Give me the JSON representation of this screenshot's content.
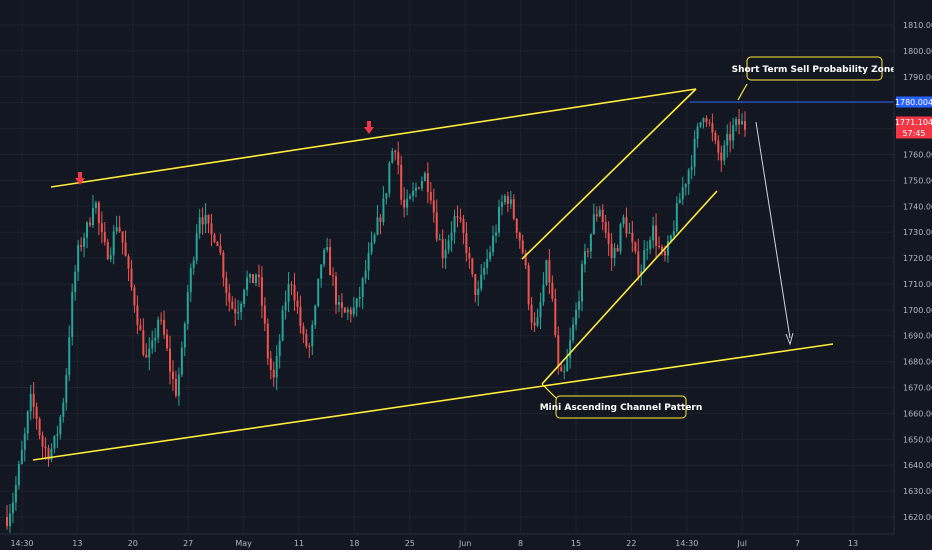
{
  "chart_data": {
    "type": "candlestick",
    "x_ticks": [
      "14:30",
      "13",
      "20",
      "27",
      "May",
      "11",
      "18",
      "25",
      "Jun",
      "8",
      "15",
      "22",
      "14:30",
      "Jul",
      "7",
      "13"
    ],
    "y_ticks": [
      "1810.000",
      "1800.000",
      "1790.000",
      "1780.000",
      "1770.000",
      "1760.000",
      "1750.000",
      "1740.000",
      "1730.000",
      "1720.000",
      "1710.000",
      "1700.000",
      "1690.000",
      "1680.000",
      "1670.000",
      "1660.000",
      "1650.000",
      "1640.000",
      "1630.000",
      "1620.000"
    ],
    "ylim": [
      1615,
      1815
    ],
    "price_tags": [
      {
        "label": "1780.004",
        "value": 1780.004,
        "color": "#2962ff"
      },
      {
        "label": "1771.104",
        "value": 1771.104,
        "color": "#f23645"
      },
      {
        "label": "57:45",
        "value": 1767.5,
        "color": "#f23645"
      }
    ],
    "annotations": [
      {
        "text": "Short Term Sell Probability Zone"
      },
      {
        "text": "Mini Ascending Channel Pattern"
      }
    ],
    "price_path": [
      [
        0,
        1620
      ],
      [
        0.6,
        1628
      ],
      [
        1.5,
        1650
      ],
      [
        2,
        1665
      ],
      [
        2.5,
        1660
      ],
      [
        3,
        1648
      ],
      [
        3.5,
        1645
      ],
      [
        4,
        1647
      ],
      [
        4.5,
        1656
      ],
      [
        5,
        1670
      ],
      [
        5.5,
        1700
      ],
      [
        6,
        1720
      ],
      [
        6.5,
        1728
      ],
      [
        7,
        1732
      ],
      [
        7.5,
        1745
      ],
      [
        8,
        1730
      ],
      [
        8.5,
        1722
      ],
      [
        9,
        1725
      ],
      [
        9.5,
        1735
      ],
      [
        10,
        1725
      ],
      [
        10.5,
        1712
      ],
      [
        11,
        1703
      ],
      [
        11.5,
        1690
      ],
      [
        12,
        1680
      ],
      [
        12.5,
        1685
      ],
      [
        13,
        1697
      ],
      [
        13.5,
        1690
      ],
      [
        14,
        1678
      ],
      [
        14.5,
        1668
      ],
      [
        15,
        1680
      ],
      [
        15.5,
        1705
      ],
      [
        16,
        1720
      ],
      [
        16.5,
        1738
      ],
      [
        17,
        1735
      ],
      [
        17.5,
        1728
      ],
      [
        18,
        1730
      ],
      [
        18.5,
        1718
      ],
      [
        19,
        1705
      ],
      [
        19.5,
        1700
      ],
      [
        20,
        1702
      ],
      [
        20.5,
        1712
      ],
      [
        21,
        1710
      ],
      [
        21.5,
        1715
      ],
      [
        22,
        1700
      ],
      [
        22.5,
        1680
      ],
      [
        23,
        1672
      ],
      [
        23.5,
        1690
      ],
      [
        24,
        1705
      ],
      [
        24.5,
        1712
      ],
      [
        25,
        1700
      ],
      [
        25.5,
        1688
      ],
      [
        26,
        1685
      ],
      [
        26.5,
        1698
      ],
      [
        27,
        1718
      ],
      [
        27.5,
        1722
      ],
      [
        28,
        1712
      ],
      [
        28.5,
        1700
      ],
      [
        29,
        1698
      ],
      [
        29.5,
        1700
      ],
      [
        30,
        1700
      ],
      [
        30.5,
        1708
      ],
      [
        31,
        1718
      ],
      [
        31.5,
        1725
      ],
      [
        32,
        1735
      ],
      [
        32.5,
        1742
      ],
      [
        33,
        1760
      ],
      [
        33.5,
        1765
      ],
      [
        34,
        1738
      ],
      [
        34.5,
        1740
      ],
      [
        35,
        1745
      ],
      [
        35.5,
        1750
      ],
      [
        36,
        1752
      ],
      [
        36.5,
        1745
      ],
      [
        37,
        1730
      ],
      [
        37.5,
        1722
      ],
      [
        38,
        1728
      ],
      [
        38.5,
        1735
      ],
      [
        39,
        1732
      ],
      [
        39.5,
        1725
      ],
      [
        40,
        1712
      ],
      [
        40.5,
        1705
      ],
      [
        41,
        1715
      ],
      [
        41.5,
        1722
      ],
      [
        42,
        1730
      ],
      [
        42.5,
        1740
      ],
      [
        43,
        1745
      ],
      [
        43.5,
        1738
      ],
      [
        44,
        1730
      ],
      [
        44.5,
        1720
      ],
      [
        45,
        1700
      ],
      [
        45.5,
        1690
      ],
      [
        46,
        1705
      ],
      [
        46.5,
        1718
      ],
      [
        47,
        1700
      ],
      [
        47.5,
        1672
      ],
      [
        48,
        1675
      ],
      [
        48.5,
        1688
      ],
      [
        49,
        1700
      ],
      [
        49.5,
        1715
      ],
      [
        50,
        1725
      ],
      [
        50.5,
        1735
      ],
      [
        51,
        1740
      ],
      [
        51.5,
        1730
      ],
      [
        52,
        1720
      ],
      [
        52.5,
        1725
      ],
      [
        53,
        1735
      ],
      [
        53.5,
        1730
      ],
      [
        54,
        1720
      ],
      [
        54.5,
        1715
      ],
      [
        55,
        1725
      ],
      [
        55.5,
        1732
      ],
      [
        56,
        1725
      ],
      [
        56.5,
        1718
      ],
      [
        57,
        1725
      ],
      [
        57.5,
        1735
      ],
      [
        58,
        1745
      ],
      [
        58.5,
        1752
      ],
      [
        59,
        1760
      ],
      [
        59.5,
        1770
      ],
      [
        60,
        1778
      ],
      [
        60.5,
        1770
      ],
      [
        61,
        1762
      ],
      [
        61.5,
        1758
      ],
      [
        62,
        1765
      ],
      [
        62.5,
        1770
      ],
      [
        63,
        1772
      ],
      [
        63.5,
        1771
      ]
    ]
  }
}
